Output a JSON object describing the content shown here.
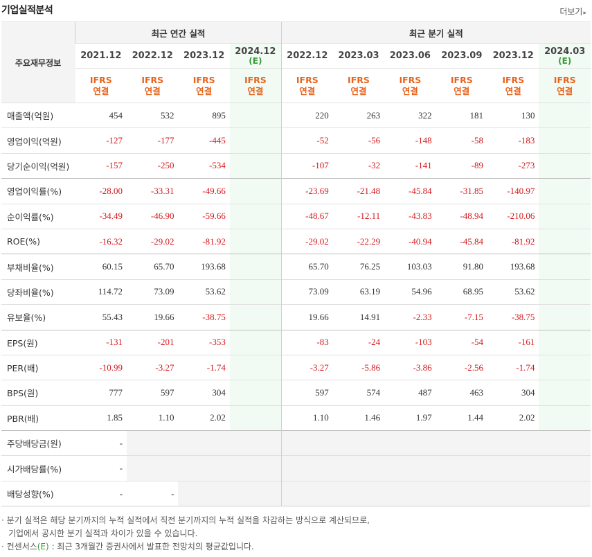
{
  "title": "기업실적분석",
  "more_label": "더보기",
  "more_arrow": "▸",
  "row_header": "주요재무정보",
  "groups": {
    "annual": "최근 연간 실적",
    "quarter": "최근 분기 실적"
  },
  "periods": [
    {
      "year": "2021.12",
      "est": ""
    },
    {
      "year": "2022.12",
      "est": ""
    },
    {
      "year": "2023.12",
      "est": ""
    },
    {
      "year": "2024.12",
      "est": "(E)"
    },
    {
      "year": "2022.12",
      "est": ""
    },
    {
      "year": "2023.03",
      "est": ""
    },
    {
      "year": "2023.06",
      "est": ""
    },
    {
      "year": "2023.09",
      "est": ""
    },
    {
      "year": "2023.12",
      "est": ""
    },
    {
      "year": "2024.03",
      "est": "(E)"
    }
  ],
  "ifrs_line1": "IFRS",
  "ifrs_line2": "연결",
  "rows": [
    {
      "label": "매출액(억원)",
      "values": [
        "454",
        "532",
        "895",
        "",
        "220",
        "263",
        "322",
        "181",
        "130",
        ""
      ]
    },
    {
      "label": "영업이익(억원)",
      "values": [
        "-127",
        "-177",
        "-445",
        "",
        "-52",
        "-56",
        "-148",
        "-58",
        "-183",
        ""
      ]
    },
    {
      "label": "당기순이익(억원)",
      "values": [
        "-157",
        "-250",
        "-534",
        "",
        "-107",
        "-32",
        "-141",
        "-89",
        "-273",
        ""
      ]
    },
    {
      "label": "영업이익률(%)",
      "values": [
        "-28.00",
        "-33.31",
        "-49.66",
        "",
        "-23.69",
        "-21.48",
        "-45.84",
        "-31.85",
        "-140.97",
        ""
      ]
    },
    {
      "label": "순이익률(%)",
      "values": [
        "-34.49",
        "-46.90",
        "-59.66",
        "",
        "-48.67",
        "-12.11",
        "-43.83",
        "-48.94",
        "-210.06",
        ""
      ]
    },
    {
      "label": "ROE(%)",
      "values": [
        "-16.32",
        "-29.02",
        "-81.92",
        "",
        "-29.02",
        "-22.29",
        "-40.94",
        "-45.84",
        "-81.92",
        ""
      ]
    },
    {
      "label": "부채비율(%)",
      "values": [
        "60.15",
        "65.70",
        "193.68",
        "",
        "65.70",
        "76.25",
        "103.03",
        "91.80",
        "193.68",
        ""
      ]
    },
    {
      "label": "당좌비율(%)",
      "values": [
        "114.72",
        "73.09",
        "53.62",
        "",
        "73.09",
        "63.19",
        "54.96",
        "68.95",
        "53.62",
        ""
      ]
    },
    {
      "label": "유보율(%)",
      "values": [
        "55.43",
        "19.66",
        "-38.75",
        "",
        "19.66",
        "14.91",
        "-2.33",
        "-7.15",
        "-38.75",
        ""
      ]
    },
    {
      "label": "EPS(원)",
      "values": [
        "-131",
        "-201",
        "-353",
        "",
        "-83",
        "-24",
        "-103",
        "-54",
        "-161",
        ""
      ]
    },
    {
      "label": "PER(배)",
      "values": [
        "-10.99",
        "-3.27",
        "-1.74",
        "",
        "-3.27",
        "-5.86",
        "-3.86",
        "-2.56",
        "-1.74",
        ""
      ]
    },
    {
      "label": "BPS(원)",
      "values": [
        "777",
        "597",
        "304",
        "",
        "597",
        "574",
        "487",
        "463",
        "304",
        ""
      ]
    },
    {
      "label": "PBR(배)",
      "values": [
        "1.85",
        "1.10",
        "2.02",
        "",
        "1.10",
        "1.46",
        "1.97",
        "1.44",
        "2.02",
        ""
      ]
    },
    {
      "label": "주당배당금(원)",
      "values": [
        "-",
        "",
        "",
        "",
        "",
        "",
        "",
        "",
        "",
        ""
      ]
    },
    {
      "label": "시가배당률(%)",
      "values": [
        "-",
        "",
        "",
        "",
        "",
        "",
        "",
        "",
        "",
        ""
      ]
    },
    {
      "label": "배당성향(%)",
      "values": [
        "-",
        "-",
        "",
        "",
        "",
        "",
        "",
        "",
        "",
        ""
      ]
    }
  ],
  "notes": {
    "line1": "· 분기 실적은 해당 분기까지의 누적 실적에서 직전 분기까지의 누적 실적을 차감하는 방식으로 계산되므로,",
    "line2": "기업에서 공시한 분기 실적과 차이가 있을 수 있습니다.",
    "line3_prefix": "· 컨센서스",
    "line3_e": "(E)",
    "line3_suffix": " : 최근 3개월간 증권사에서 발표한 전망치의 평균값입니다."
  },
  "colors": {
    "negative": "#d4191d",
    "ifrs": "#e8631c",
    "estimate": "#3a9a3a",
    "estimate_bg": "#f2fbf3",
    "header_bg": "#f4f4f4"
  }
}
